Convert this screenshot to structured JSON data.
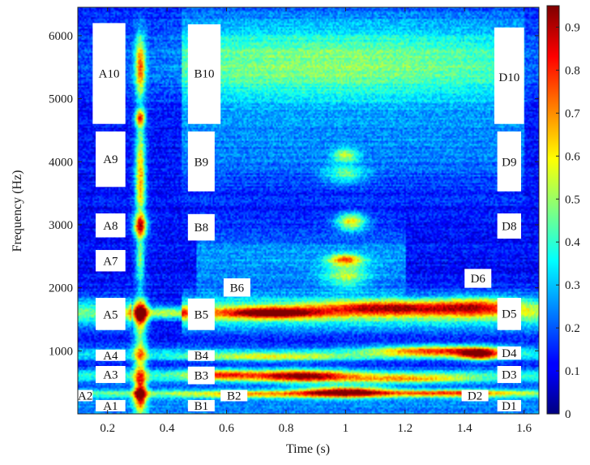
{
  "chart_data": {
    "type": "heatmap",
    "title": "",
    "xlabel": "Time (s)",
    "ylabel": "Frequency (Hz)",
    "xlim": [
      0.1,
      1.65
    ],
    "ylim": [
      0,
      6450
    ],
    "x_ticks": [
      0.2,
      0.4,
      0.6,
      0.8,
      1,
      1.2,
      1.4,
      1.6
    ],
    "x_tick_labels": [
      "0.2",
      "0.4",
      "0.6",
      "0.8",
      "1",
      "1.2",
      "1.4",
      "1.6"
    ],
    "y_ticks": [
      1000,
      2000,
      3000,
      4000,
      5000,
      6000
    ],
    "y_tick_labels": [
      "1000",
      "2000",
      "3000",
      "4000",
      "5000",
      "6000"
    ],
    "colorbar": {
      "range": [
        0,
        0.95
      ],
      "ticks": [
        0,
        0.1,
        0.2,
        0.3,
        0.4,
        0.5,
        0.6,
        0.7,
        0.8,
        0.9
      ],
      "tick_labels": [
        "0",
        "0.1",
        "0.2",
        "0.3",
        "0.4",
        "0.5",
        "0.6",
        "0.7",
        "0.8",
        "0.9"
      ],
      "colormap": "jet"
    },
    "grid": false,
    "background_level": 0.13,
    "hotspots": [
      {
        "t": 0.31,
        "f": 5500,
        "dt": 0.012,
        "df": 350,
        "v": 0.55
      },
      {
        "t": 0.31,
        "f": 4700,
        "dt": 0.012,
        "df": 90,
        "v": 0.52
      },
      {
        "t": 0.31,
        "f": 4100,
        "dt": 0.012,
        "df": 400,
        "v": 0.42
      },
      {
        "t": 0.31,
        "f": 3500,
        "dt": 0.012,
        "df": 300,
        "v": 0.38
      },
      {
        "t": 0.31,
        "f": 2980,
        "dt": 0.016,
        "df": 130,
        "v": 0.65
      },
      {
        "t": 0.31,
        "f": 2450,
        "dt": 0.01,
        "df": 300,
        "v": 0.35
      },
      {
        "t": 0.31,
        "f": 1600,
        "dt": 0.018,
        "df": 140,
        "v": 0.75
      },
      {
        "t": 0.31,
        "f": 800,
        "dt": 0.015,
        "df": 600,
        "v": 0.42
      },
      {
        "t": 0.31,
        "f": 300,
        "dt": 0.015,
        "df": 150,
        "v": 0.45
      },
      {
        "t": 0.95,
        "f": 5600,
        "dt": 0.55,
        "df": 450,
        "v": 0.18
      },
      {
        "t": 1.0,
        "f": 4100,
        "dt": 0.03,
        "df": 80,
        "v": 0.3
      },
      {
        "t": 1.0,
        "f": 3800,
        "dt": 0.05,
        "df": 100,
        "v": 0.25
      },
      {
        "t": 1.02,
        "f": 3050,
        "dt": 0.035,
        "df": 100,
        "v": 0.45
      },
      {
        "t": 1.0,
        "f": 2450,
        "dt": 0.04,
        "df": 60,
        "v": 0.45
      },
      {
        "t": 1.0,
        "f": 2200,
        "dt": 0.05,
        "df": 150,
        "v": 0.28
      },
      {
        "t": 0.75,
        "f": 1600,
        "dt": 0.12,
        "df": 60,
        "v": 0.6
      },
      {
        "t": 1.15,
        "f": 1680,
        "dt": 0.18,
        "df": 80,
        "v": 0.48
      },
      {
        "t": 1.45,
        "f": 1700,
        "dt": 0.1,
        "df": 100,
        "v": 0.35
      },
      {
        "t": 0.4,
        "f": 1600,
        "dt": 0.08,
        "df": 70,
        "v": 0.4
      },
      {
        "t": 1.3,
        "f": 1000,
        "dt": 0.15,
        "df": 60,
        "v": 0.5
      },
      {
        "t": 1.45,
        "f": 950,
        "dt": 0.05,
        "df": 70,
        "v": 0.55
      },
      {
        "t": 0.75,
        "f": 900,
        "dt": 0.2,
        "df": 50,
        "v": 0.28
      },
      {
        "t": 0.85,
        "f": 600,
        "dt": 0.12,
        "df": 70,
        "v": 0.6
      },
      {
        "t": 1.2,
        "f": 550,
        "dt": 0.15,
        "df": 50,
        "v": 0.35
      },
      {
        "t": 0.58,
        "f": 620,
        "dt": 0.08,
        "df": 60,
        "v": 0.4
      },
      {
        "t": 1.0,
        "f": 350,
        "dt": 0.1,
        "df": 60,
        "v": 0.65
      },
      {
        "t": 1.35,
        "f": 330,
        "dt": 0.15,
        "df": 40,
        "v": 0.35
      },
      {
        "t": 0.72,
        "f": 310,
        "dt": 0.18,
        "df": 40,
        "v": 0.25
      }
    ],
    "bands": [
      {
        "t0": 0.45,
        "t1": 1.65,
        "f": 1600,
        "df": 180,
        "v": 0.35
      },
      {
        "t0": 0.1,
        "t1": 0.28,
        "f": 1600,
        "df": 150,
        "v": 0.32
      },
      {
        "t0": 0.45,
        "t1": 1.6,
        "f": 5500,
        "df": 550,
        "v": 0.18
      },
      {
        "t0": 0.45,
        "t1": 1.6,
        "f": 4200,
        "df": 450,
        "v": 0.1
      },
      {
        "t0": 0.1,
        "t1": 1.65,
        "f": 950,
        "df": 70,
        "v": 0.22
      },
      {
        "t0": 0.1,
        "t1": 1.65,
        "f": 600,
        "df": 80,
        "v": 0.25
      },
      {
        "t0": 0.1,
        "t1": 1.65,
        "f": 320,
        "df": 55,
        "v": 0.3
      },
      {
        "t0": 0.5,
        "t1": 1.2,
        "f": 2400,
        "df": 350,
        "v": 0.14
      },
      {
        "t0": 0.1,
        "t1": 1.65,
        "f": 80,
        "df": 120,
        "v": 0.12
      }
    ],
    "label_boxes": [
      {
        "text": "A10",
        "t0": 0.15,
        "t1": 0.26,
        "f0": 4600,
        "f1": 6200,
        "label_t": 0.205,
        "label_f": 5400
      },
      {
        "text": "A9",
        "t0": 0.16,
        "t1": 0.26,
        "f0": 3600,
        "f1": 4480,
        "label_t": 0.21,
        "label_f": 4040
      },
      {
        "text": "A8",
        "t0": 0.16,
        "t1": 0.26,
        "f0": 2800,
        "f1": 3180,
        "label_t": 0.21,
        "label_f": 2990
      },
      {
        "text": "A7",
        "t0": 0.16,
        "t1": 0.26,
        "f0": 2260,
        "f1": 2600,
        "label_t": 0.21,
        "label_f": 2430
      },
      {
        "text": "A5",
        "t0": 0.16,
        "t1": 0.26,
        "f0": 1330,
        "f1": 1840,
        "label_t": 0.21,
        "label_f": 1580
      },
      {
        "text": "A4",
        "t0": 0.16,
        "t1": 0.26,
        "f0": 840,
        "f1": 1020,
        "label_t": 0.21,
        "label_f": 930
      },
      {
        "text": "A3",
        "t0": 0.16,
        "t1": 0.26,
        "f0": 490,
        "f1": 760,
        "label_t": 0.21,
        "label_f": 625
      },
      {
        "text": "A2",
        "t0": 0.1,
        "t1": 0.15,
        "f0": 200,
        "f1": 380,
        "label_t": 0.125,
        "label_f": 290
      },
      {
        "text": "A1",
        "t0": 0.16,
        "t1": 0.26,
        "f0": 40,
        "f1": 220,
        "label_t": 0.21,
        "label_f": 130
      },
      {
        "text": "B10",
        "t0": 0.47,
        "t1": 0.58,
        "f0": 4600,
        "f1": 6180,
        "label_t": 0.525,
        "label_f": 5400
      },
      {
        "text": "B9",
        "t0": 0.47,
        "t1": 0.56,
        "f0": 3530,
        "f1": 4480,
        "label_t": 0.515,
        "label_f": 4000
      },
      {
        "text": "B8",
        "t0": 0.47,
        "t1": 0.56,
        "f0": 2750,
        "f1": 3170,
        "label_t": 0.515,
        "label_f": 2960
      },
      {
        "text": "B6",
        "t0": 0.59,
        "t1": 0.68,
        "f0": 1860,
        "f1": 2150,
        "label_t": 0.635,
        "label_f": 2005
      },
      {
        "text": "B5",
        "t0": 0.47,
        "t1": 0.56,
        "f0": 1330,
        "f1": 1830,
        "label_t": 0.515,
        "label_f": 1575
      },
      {
        "text": "B4",
        "t0": 0.47,
        "t1": 0.56,
        "f0": 840,
        "f1": 1010,
        "label_t": 0.515,
        "label_f": 925
      },
      {
        "text": "B3",
        "t0": 0.47,
        "t1": 0.56,
        "f0": 470,
        "f1": 750,
        "label_t": 0.515,
        "label_f": 610
      },
      {
        "text": "B2",
        "t0": 0.58,
        "t1": 0.67,
        "f0": 200,
        "f1": 380,
        "label_t": 0.625,
        "label_f": 290
      },
      {
        "text": "B1",
        "t0": 0.47,
        "t1": 0.56,
        "f0": 40,
        "f1": 220,
        "label_t": 0.515,
        "label_f": 130
      },
      {
        "text": "D10",
        "t0": 1.5,
        "t1": 1.6,
        "f0": 4600,
        "f1": 6130,
        "label_t": 1.55,
        "label_f": 5340
      },
      {
        "text": "D9",
        "t0": 1.51,
        "t1": 1.59,
        "f0": 3530,
        "f1": 4480,
        "label_t": 1.55,
        "label_f": 4000
      },
      {
        "text": "D8",
        "t0": 1.51,
        "t1": 1.59,
        "f0": 2780,
        "f1": 3180,
        "label_t": 1.55,
        "label_f": 2980
      },
      {
        "text": "D6",
        "t0": 1.4,
        "t1": 1.49,
        "f0": 2000,
        "f1": 2300,
        "label_t": 1.445,
        "label_f": 2150
      },
      {
        "text": "D5",
        "t0": 1.51,
        "t1": 1.59,
        "f0": 1330,
        "f1": 1840,
        "label_t": 1.55,
        "label_f": 1590
      },
      {
        "text": "D4",
        "t0": 1.51,
        "t1": 1.59,
        "f0": 860,
        "f1": 1070,
        "label_t": 1.55,
        "label_f": 965
      },
      {
        "text": "D3",
        "t0": 1.51,
        "t1": 1.59,
        "f0": 490,
        "f1": 760,
        "label_t": 1.55,
        "label_f": 625
      },
      {
        "text": "D2",
        "t0": 1.39,
        "t1": 1.48,
        "f0": 200,
        "f1": 380,
        "label_t": 1.435,
        "label_f": 290
      },
      {
        "text": "D1",
        "t0": 1.51,
        "t1": 1.59,
        "f0": 40,
        "f1": 220,
        "label_t": 1.55,
        "label_f": 130
      }
    ]
  }
}
